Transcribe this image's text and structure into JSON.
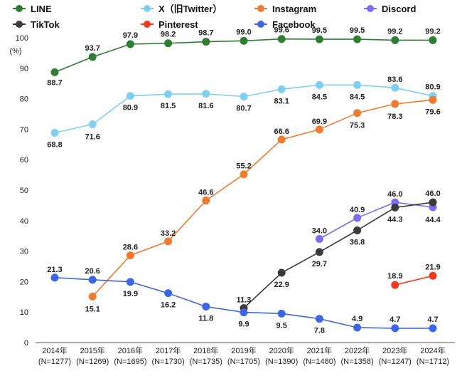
{
  "chart_data": {
    "type": "line",
    "ylabel": "(%)",
    "ylim": [
      0,
      100
    ],
    "yticks": [
      0,
      10,
      20,
      30,
      40,
      50,
      60,
      70,
      80,
      90,
      100
    ],
    "grid": false,
    "legend_position": "top",
    "categories": [
      "2014年",
      "2015年",
      "2016年",
      "2017年",
      "2018年",
      "2019年",
      "2020年",
      "2021年",
      "2022年",
      "2023年",
      "2024年"
    ],
    "sample_sizes": [
      "(N=1277)",
      "(N=1269)",
      "(N=1695)",
      "(N=1730)",
      "(N=1735)",
      "(N=1705)",
      "(N=1390)",
      "(N=1480)",
      "(N=1358)",
      "(N=1247)",
      "(N=1712)"
    ],
    "series": [
      {
        "name": "LINE",
        "color": "#2e7d32",
        "values": [
          88.7,
          93.7,
          97.9,
          98.2,
          98.7,
          99.0,
          99.6,
          99.5,
          99.5,
          99.2,
          99.2
        ],
        "labels": [
          "88.7",
          "93.7",
          "97.9",
          "98.2",
          "98.7",
          "99.0",
          "99.6",
          "99.5",
          "99.5",
          "99.2",
          "99.2"
        ]
      },
      {
        "name": "X（旧Twitter）",
        "color": "#7fd0ef",
        "values": [
          68.8,
          71.6,
          80.9,
          81.5,
          81.6,
          80.7,
          83.1,
          84.5,
          84.5,
          83.6,
          80.9
        ],
        "labels": [
          "68.8",
          "71.6",
          "80.9",
          "81.5",
          "81.6",
          "80.7",
          "83.1",
          "84.5",
          "84.5",
          "83.6",
          "80.9"
        ]
      },
      {
        "name": "Instagram",
        "color": "#f07a2e",
        "values": [
          null,
          15.1,
          28.6,
          33.2,
          46.6,
          55.2,
          66.6,
          69.9,
          75.3,
          78.3,
          79.6
        ],
        "labels": [
          null,
          "15.1",
          "28.6",
          "33.2",
          "46.6",
          "55.2",
          "66.6",
          "69.9",
          "75.3",
          "78.3",
          "79.6"
        ]
      },
      {
        "name": "Discord",
        "color": "#7b6cf0",
        "values": [
          null,
          null,
          null,
          null,
          null,
          null,
          null,
          34.0,
          40.9,
          46.0,
          44.4
        ],
        "labels": [
          null,
          null,
          null,
          null,
          null,
          null,
          null,
          "34.0",
          "40.9",
          "46.0",
          "44.4"
        ]
      },
      {
        "name": "TikTok",
        "color": "#3a3a3a",
        "values": [
          null,
          null,
          null,
          null,
          null,
          11.3,
          22.9,
          29.7,
          36.8,
          44.3,
          46.0
        ],
        "labels": [
          null,
          null,
          null,
          null,
          null,
          "11.3",
          "22.9",
          "29.7",
          "36.8",
          "44.3",
          "46.0"
        ]
      },
      {
        "name": "Pinterest",
        "color": "#f03a1e",
        "values": [
          null,
          null,
          null,
          null,
          null,
          null,
          null,
          null,
          null,
          18.9,
          21.9
        ],
        "labels": [
          null,
          null,
          null,
          null,
          null,
          null,
          null,
          null,
          null,
          "18.9",
          "21.9"
        ]
      },
      {
        "name": "Facebook",
        "color": "#3d66e6",
        "values": [
          21.3,
          20.6,
          19.9,
          16.2,
          11.8,
          9.9,
          9.5,
          7.8,
          4.9,
          4.7,
          4.7
        ],
        "labels": [
          "21.3",
          "20.6",
          "19.9",
          "16.2",
          "11.8",
          "9.9",
          "9.5",
          "7.8",
          "4.9",
          "4.7",
          "4.7"
        ]
      }
    ]
  }
}
